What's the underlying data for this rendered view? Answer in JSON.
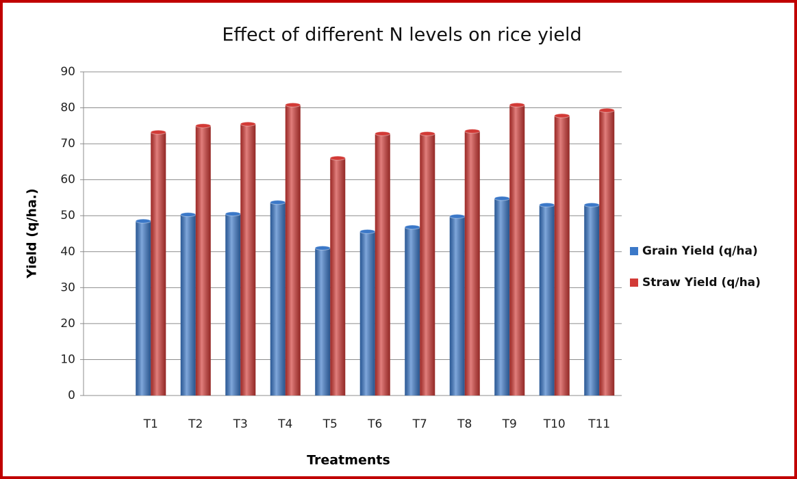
{
  "chart_data": {
    "type": "bar",
    "title": "Effect of different N levels on rice yield",
    "x_label": "Treatments",
    "y_label": "Yield (q/ha.)",
    "categories": [
      null,
      "T1",
      "T2",
      "T3",
      "T4",
      "T5",
      "T6",
      "T7",
      "T8",
      "T9",
      "T10",
      "T11"
    ],
    "series": [
      {
        "name": "Grain Yield (q/ha)",
        "color": "#3b78c8",
        "values": [
          null,
          48.5,
          50.3,
          50.5,
          53.7,
          41,
          45.6,
          46.8,
          49.8,
          54.8,
          53,
          53
        ]
      },
      {
        "name": "Straw Yield (q/ha)",
        "color": "#d23a36",
        "values": [
          null,
          73.2,
          75,
          75.5,
          80.8,
          66,
          72.8,
          72.8,
          73.5,
          80.8,
          77.8,
          79.3
        ]
      }
    ],
    "ylim": [
      0,
      90
    ],
    "yticks": [
      0,
      10,
      20,
      30,
      40,
      50,
      60,
      70,
      80,
      90
    ],
    "grid": true,
    "legend": "right"
  }
}
